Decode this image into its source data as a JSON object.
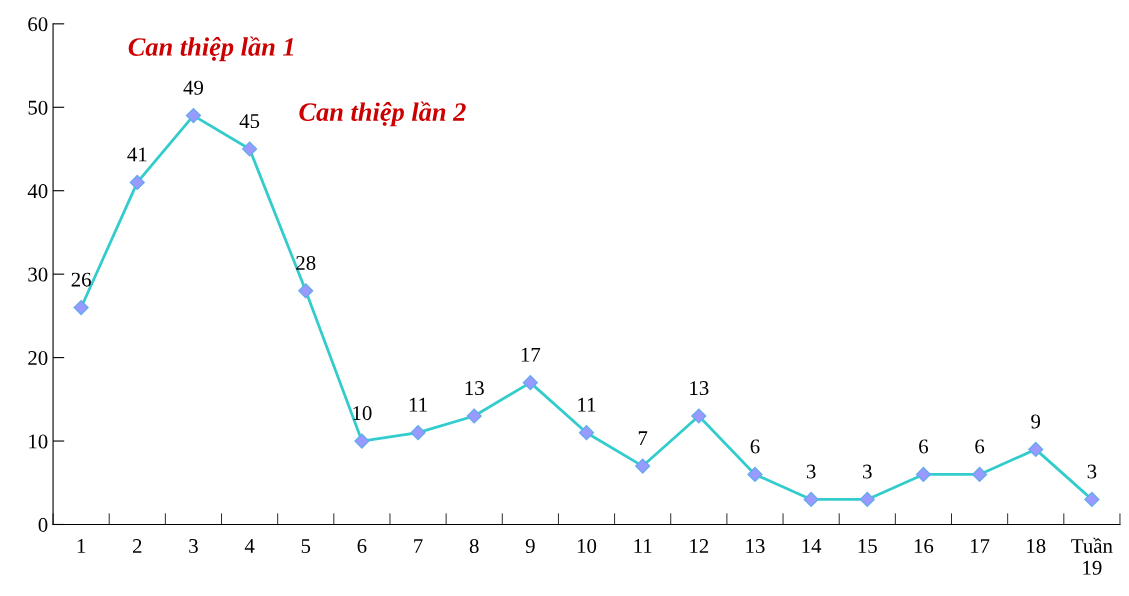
{
  "chart_data": {
    "type": "line",
    "categories": [
      "1",
      "2",
      "3",
      "4",
      "5",
      "6",
      "7",
      "8",
      "9",
      "10",
      "11",
      "12",
      "13",
      "14",
      "15",
      "16",
      "17",
      "18",
      "Tuần\n19"
    ],
    "series": [
      {
        "color": "#33cccc",
        "values": [
          26,
          41,
          49,
          45,
          28,
          10,
          11,
          13,
          17,
          11,
          7,
          13,
          6,
          3,
          3,
          6,
          6,
          9,
          3
        ]
      }
    ],
    "ylim": [
      0,
      60
    ],
    "yticks": [
      0,
      10,
      20,
      30,
      40,
      50,
      60
    ],
    "annotations": [
      "Can thiệp lần 1",
      "Can thiệp lần 2"
    ],
    "data_labels": true,
    "marker": "diamond",
    "line_style": "solid",
    "grid": false,
    "legend": false
  }
}
